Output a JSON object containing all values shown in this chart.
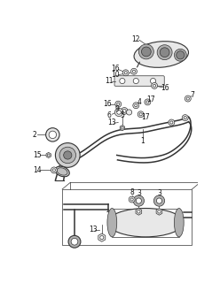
{
  "bg_color": "#ffffff",
  "fig_width": 2.48,
  "fig_height": 3.2,
  "dpi": 100,
  "line_color": "#333333",
  "gray_fill": "#c8c8c8",
  "gray_dark": "#999999",
  "gray_light": "#e8e8e8",
  "label_fontsize": 5.5,
  "label_color": "#111111"
}
